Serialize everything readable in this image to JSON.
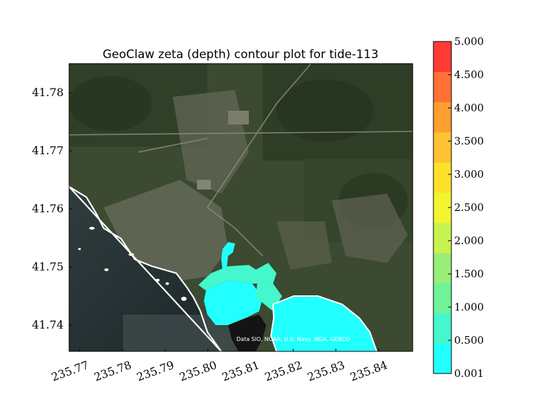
{
  "chart_data": {
    "type": "heatmap",
    "title": "GeoClaw zeta (depth) contour plot for tide-113",
    "xlabel": "",
    "ylabel": "",
    "x_ticks": [
      "235.77",
      "235.78",
      "235.79",
      "235.80",
      "235.81",
      "235.82",
      "235.83",
      "235.84"
    ],
    "y_ticks": [
      "41.74",
      "41.75",
      "41.76",
      "41.77",
      "41.78"
    ],
    "xlim": [
      235.7675,
      235.848
    ],
    "ylim": [
      41.7355,
      41.785
    ],
    "background": "satellite imagery",
    "attribution": "Data SIO, NOAA, U.S. Navy, NGA, GEBCO",
    "colorbar": {
      "labels": [
        "0.001",
        "0.500",
        "1.000",
        "1.500",
        "2.000",
        "2.500",
        "3.000",
        "3.500",
        "4.000",
        "4.500",
        "5.000"
      ],
      "levels": [
        0.001,
        0.5,
        1.0,
        1.5,
        2.0,
        2.5,
        3.0,
        3.5,
        4.0,
        4.5,
        5.0
      ],
      "colors": [
        "#22ffff",
        "#44f7cc",
        "#6ff29a",
        "#99ee77",
        "#c8f250",
        "#f3f430",
        "#ffe02a",
        "#ffc233",
        "#ff9f2f",
        "#ff7234",
        "#ff3a33"
      ]
    }
  }
}
